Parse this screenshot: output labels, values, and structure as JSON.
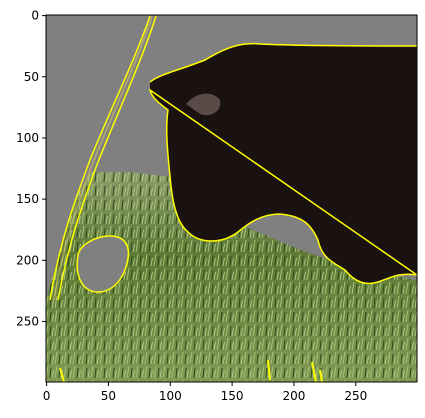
{
  "axes": {
    "x_ticks": [
      {
        "value": 0,
        "label": "0"
      },
      {
        "value": 50,
        "label": "50"
      },
      {
        "value": 100,
        "label": "100"
      },
      {
        "value": 150,
        "label": "150"
      },
      {
        "value": 200,
        "label": "200"
      },
      {
        "value": 250,
        "label": "250"
      }
    ],
    "y_ticks": [
      {
        "value": 0,
        "label": "0"
      },
      {
        "value": 50,
        "label": "50"
      },
      {
        "value": 100,
        "label": "100"
      },
      {
        "value": 150,
        "label": "150"
      },
      {
        "value": 200,
        "label": "200"
      },
      {
        "value": 250,
        "label": "250"
      }
    ],
    "x_range": [
      0,
      299
    ],
    "y_range": [
      0,
      299
    ]
  },
  "image": {
    "description_icon": "masked-photo-icon",
    "colors": {
      "background_mask": "#808080",
      "outline": "#ffff00",
      "animal": "#1a1210",
      "grass_dark": "#3f5a22",
      "grass_light": "#8aa55a"
    }
  }
}
